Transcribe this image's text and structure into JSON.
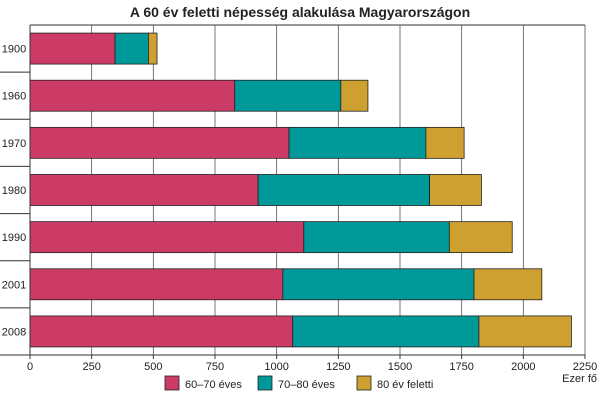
{
  "chart_data": {
    "type": "bar",
    "orientation": "horizontal",
    "stacked": true,
    "title": "A 60 év feletti népesség alakulása Magyarországon",
    "xlabel": "Ezer fő",
    "ylabel": "",
    "categories": [
      "1900",
      "1960",
      "1970",
      "1980",
      "1990",
      "2001",
      "2008"
    ],
    "series": [
      {
        "name": "60–70 éves",
        "color": "#cc3a66",
        "values": [
          345,
          830,
          1050,
          925,
          1110,
          1025,
          1065
        ]
      },
      {
        "name": "70–80 éves",
        "color": "#00999a",
        "values": [
          135,
          430,
          555,
          695,
          590,
          775,
          755
        ]
      },
      {
        "name": "80 év feletti",
        "color": "#cda030",
        "values": [
          35,
          110,
          155,
          210,
          255,
          275,
          375
        ]
      }
    ],
    "xlim": [
      0,
      2250
    ],
    "xticks": [
      0,
      250,
      500,
      750,
      1000,
      1250,
      1500,
      1750,
      2000,
      2250
    ],
    "grid": true,
    "legend_position": "bottom"
  }
}
